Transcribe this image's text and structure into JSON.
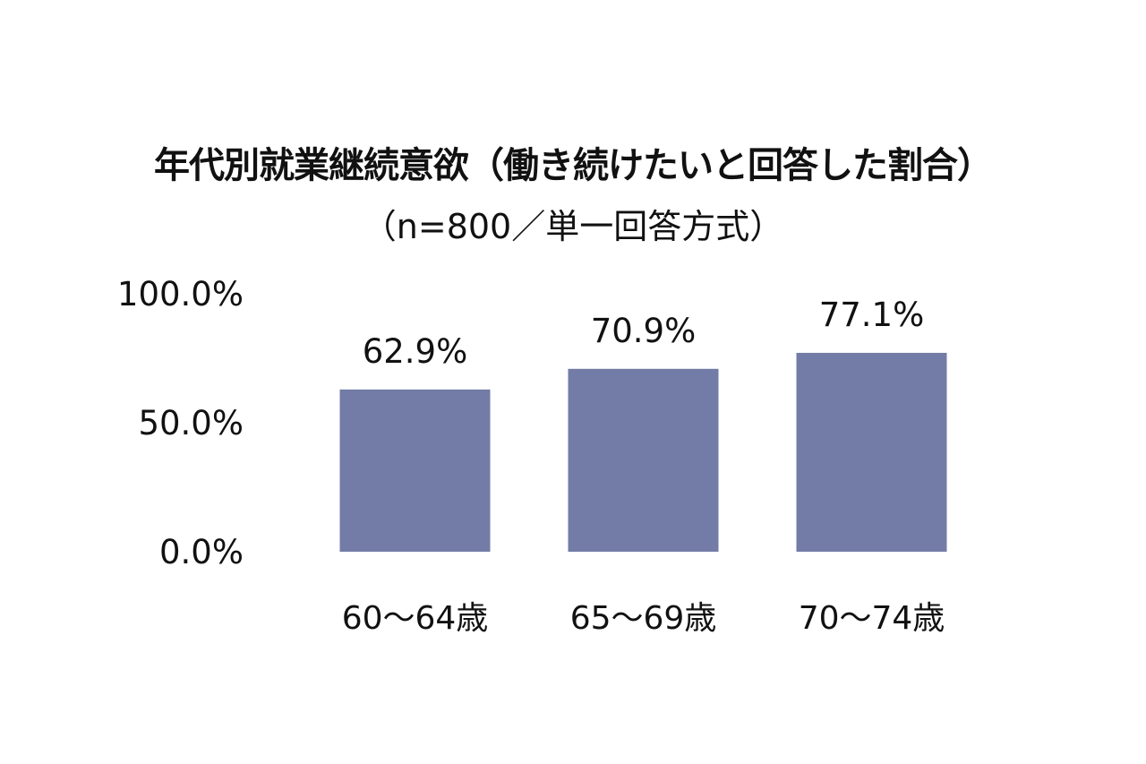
{
  "chart_data": {
    "type": "bar",
    "title": "年代別就業継続意欲（働き続けたいと回答した割合）",
    "subtitle": "（n=800／単一回答方式）",
    "categories": [
      "60～64歳",
      "65～69歳",
      "70～74歳"
    ],
    "values": [
      62.9,
      70.9,
      77.1
    ],
    "data_labels": [
      "62.9%",
      "70.9%",
      "77.1%"
    ],
    "y_ticks": [
      0,
      50,
      100
    ],
    "y_tick_labels": [
      "0.0%",
      "50.0%",
      "100.0%"
    ],
    "ylim": [
      0,
      100
    ],
    "grid": false,
    "bar_color": "#737ca6"
  }
}
